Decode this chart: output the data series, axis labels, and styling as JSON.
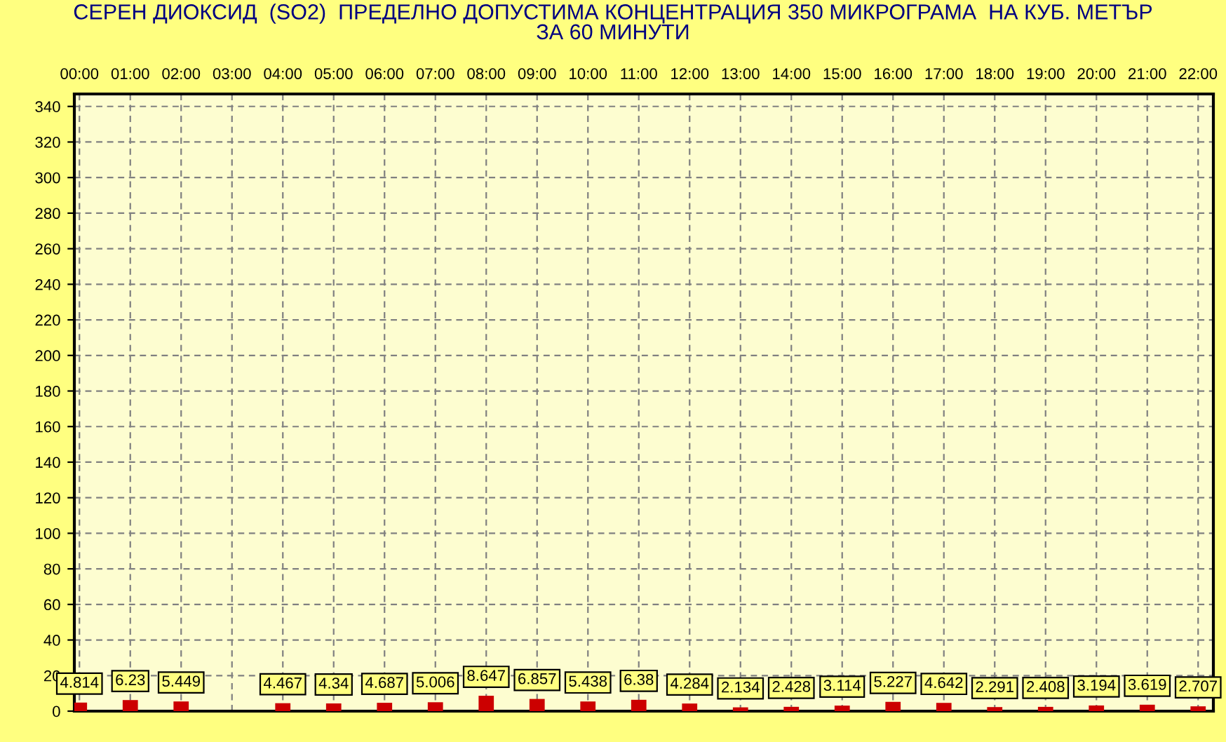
{
  "chart_data": {
    "type": "bar",
    "title": "СЕРЕН ДИОКСИД  (SO2)  ПРЕДЕЛНО ДОПУСТИМА КОНЦЕНТРАЦИЯ 350 МИКРОГРАМА  НА КУБ. МЕТЪР\nЗА 60 МИНУТИ",
    "categories": [
      "00:00",
      "01:00",
      "02:00",
      "03:00",
      "04:00",
      "05:00",
      "06:00",
      "07:00",
      "08:00",
      "09:00",
      "10:00",
      "11:00",
      "12:00",
      "13:00",
      "14:00",
      "15:00",
      "16:00",
      "17:00",
      "18:00",
      "19:00",
      "20:00",
      "21:00",
      "22:00"
    ],
    "values": [
      4.814,
      6.23,
      5.449,
      null,
      4.467,
      4.34,
      4.687,
      5.006,
      8.647,
      6.857,
      5.438,
      6.38,
      4.284,
      2.134,
      2.428,
      3.114,
      5.227,
      4.642,
      2.291,
      2.408,
      3.194,
      3.619,
      2.707
    ],
    "color": "#cc0000",
    "data_labels": true,
    "ylim": [
      0,
      347
    ],
    "yticks": [
      0,
      20,
      40,
      60,
      80,
      100,
      120,
      140,
      160,
      180,
      200,
      220,
      240,
      260,
      280,
      300,
      320,
      340
    ],
    "grid": true
  }
}
